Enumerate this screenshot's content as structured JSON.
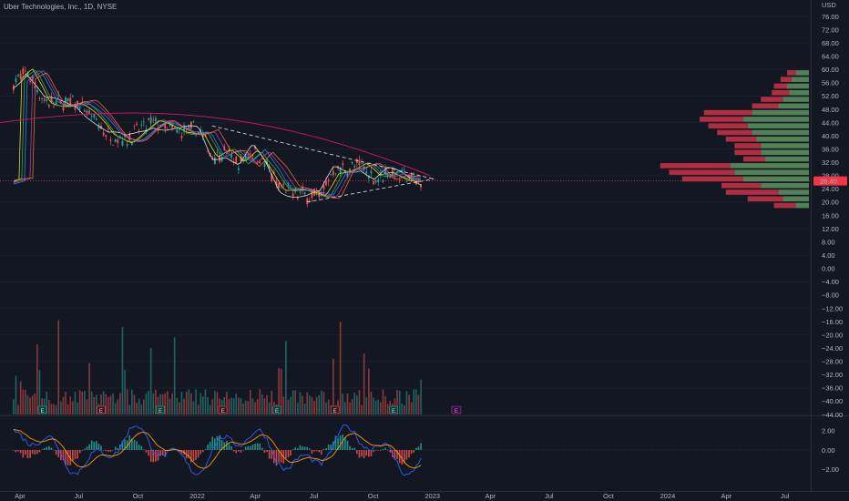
{
  "header": {
    "title": "Uber Technologies, Inc., 1D, NYSE"
  },
  "price_axis": {
    "currency": "USD",
    "labels": [
      "76.00",
      "72.00",
      "68.00",
      "64.00",
      "60.00",
      "56.00",
      "52.00",
      "48.00",
      "44.00",
      "40.00",
      "36.00",
      "32.00",
      "28.00",
      "24.00",
      "20.00",
      "16.00",
      "12.00",
      "8.00",
      "4.00",
      "0.00",
      "−4.00",
      "−8.00",
      "−12.00",
      "−16.00",
      "−20.00",
      "−24.00",
      "−28.00",
      "−32.00",
      "−36.00",
      "−40.00",
      "−44.00"
    ],
    "last_price_label": "26.40",
    "last_price_color": "#f23645"
  },
  "oscillator_axis": {
    "labels": [
      "2.00",
      "0.00",
      "−2.00"
    ]
  },
  "time_axis": {
    "labels": [
      "Apr",
      "Jul",
      "Oct",
      "2022",
      "Apr",
      "Jul",
      "Oct",
      "2023",
      "Apr",
      "Jul",
      "Oct",
      "2024",
      "Apr",
      "Jul"
    ]
  },
  "earnings_markers": {
    "label": "E",
    "count": 7,
    "upcoming_count": 1
  },
  "colors": {
    "up": "#26a69a",
    "down": "#ef5350",
    "background": "#131722",
    "vp_up": "#6aa56a",
    "vp_down": "#d8344a",
    "ma_long": "#c2185b",
    "macd": "#2962ff",
    "signal": "#ff9800",
    "upcoming_earnings": "#9c27b0"
  },
  "chart_data": {
    "type": "line",
    "symbol": "UBER",
    "interval": "1D",
    "price_ylim": [
      -44,
      76
    ],
    "price_path": [
      [
        "2021-03-22",
        56
      ],
      [
        "2021-04-12",
        59
      ],
      [
        "2021-05-10",
        50
      ],
      [
        "2021-06-07",
        50
      ],
      [
        "2021-06-28",
        50
      ],
      [
        "2021-07-19",
        46
      ],
      [
        "2021-08-16",
        40
      ],
      [
        "2021-09-13",
        39
      ],
      [
        "2021-10-04",
        42
      ],
      [
        "2021-10-25",
        44
      ],
      [
        "2021-11-15",
        42
      ],
      [
        "2021-12-06",
        41
      ],
      [
        "2022-01-03",
        42
      ],
      [
        "2022-01-24",
        34
      ],
      [
        "2022-02-14",
        35
      ],
      [
        "2022-03-07",
        31
      ],
      [
        "2022-03-28",
        36
      ],
      [
        "2022-04-18",
        31
      ],
      [
        "2022-05-09",
        24
      ],
      [
        "2022-05-30",
        23
      ],
      [
        "2022-06-20",
        22
      ],
      [
        "2022-07-11",
        22
      ],
      [
        "2022-08-01",
        30
      ],
      [
        "2022-08-22",
        30
      ],
      [
        "2022-09-12",
        31
      ],
      [
        "2022-10-03",
        27
      ],
      [
        "2022-10-24",
        29
      ],
      [
        "2022-11-14",
        28
      ],
      [
        "2022-12-05",
        27
      ],
      [
        "2022-12-16",
        26.4
      ]
    ],
    "triangle_upper": [
      [
        "2022-01-24",
        43
      ],
      [
        "2023-01-03",
        27
      ]
    ],
    "triangle_lower": [
      [
        "2022-06-20",
        20
      ],
      [
        "2023-01-03",
        27
      ]
    ],
    "last_price": 26.4,
    "oscillator_ylim": [
      -3.5,
      3.5
    ],
    "volume_profile": {
      "rows": [
        {
          "price": 59,
          "up": 6,
          "down": 4
        },
        {
          "price": 57,
          "up": 8,
          "down": 5
        },
        {
          "price": 55,
          "up": 10,
          "down": 6
        },
        {
          "price": 53,
          "up": 9,
          "down": 8
        },
        {
          "price": 51,
          "up": 12,
          "down": 10
        },
        {
          "price": 49,
          "up": 14,
          "down": 12
        },
        {
          "price": 47,
          "up": 26,
          "down": 22
        },
        {
          "price": 45,
          "up": 30,
          "down": 20
        },
        {
          "price": 43,
          "up": 28,
          "down": 18
        },
        {
          "price": 41,
          "up": 26,
          "down": 16
        },
        {
          "price": 39,
          "up": 24,
          "down": 14
        },
        {
          "price": 37,
          "up": 22,
          "down": 12
        },
        {
          "price": 35,
          "up": 22,
          "down": 12
        },
        {
          "price": 33,
          "up": 20,
          "down": 10
        },
        {
          "price": 31,
          "up": 36,
          "down": 32
        },
        {
          "price": 29,
          "up": 34,
          "down": 30
        },
        {
          "price": 27,
          "up": 30,
          "down": 28
        },
        {
          "price": 25,
          "up": 22,
          "down": 18
        },
        {
          "price": 23,
          "up": 14,
          "down": 24
        },
        {
          "price": 21,
          "up": 12,
          "down": 16
        },
        {
          "price": 19,
          "up": 6,
          "down": 10
        }
      ]
    }
  }
}
